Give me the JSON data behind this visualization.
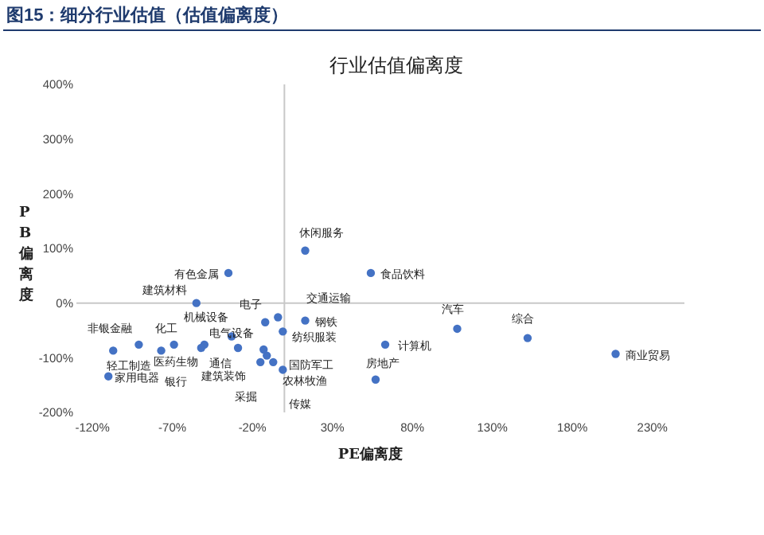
{
  "chart_data": {
    "type": "scatter",
    "title": "图15：细分行业估值（估值偏离度）",
    "subtitle": "行业估值偏离度",
    "xlabel": "PE偏离度",
    "ylabel": "PB偏离度",
    "xlim": [
      -130,
      250
    ],
    "ylim": [
      -200,
      400
    ],
    "xticks": [
      {
        "value": -120,
        "label": "-120%"
      },
      {
        "value": -70,
        "label": "-70%"
      },
      {
        "value": -20,
        "label": "-20%"
      },
      {
        "value": 30,
        "label": "30%"
      },
      {
        "value": 80,
        "label": "80%"
      },
      {
        "value": 130,
        "label": "130%"
      },
      {
        "value": 180,
        "label": "180%"
      },
      {
        "value": 230,
        "label": "230%"
      }
    ],
    "yticks": [
      {
        "value": -200,
        "label": "-200%"
      },
      {
        "value": -100,
        "label": "-100%"
      },
      {
        "value": 0,
        "label": "0%"
      },
      {
        "value": 100,
        "label": "100%"
      },
      {
        "value": 200,
        "label": "200%"
      },
      {
        "value": 300,
        "label": "300%"
      },
      {
        "value": 400,
        "label": "400%"
      }
    ],
    "marker": "circle",
    "series": [
      {
        "color": "#4472c4",
        "x": [
          13,
          54,
          -35,
          -55,
          -12,
          -4,
          13,
          -1,
          -29,
          -11,
          -15,
          -7,
          -1,
          -33,
          -50,
          -52,
          -69,
          -91,
          -77,
          -107,
          -110,
          63,
          57,
          108,
          152,
          207,
          -13
        ],
        "values": [
          96,
          55,
          55,
          0,
          -35,
          -26,
          -32,
          -52,
          -82,
          -96,
          -108,
          -108,
          -122,
          -61,
          -76,
          -82,
          -76,
          -76,
          -87,
          -87,
          -134,
          -76,
          -140,
          -47,
          -64,
          -93,
          -85
        ]
      }
    ],
    "annotations": [
      {
        "text": "休闲服务",
        "x": 13,
        "y": 96
      },
      {
        "text": "食品饮料",
        "x": 54,
        "y": 55
      },
      {
        "text": "有色金属",
        "x": -35,
        "y": 55
      },
      {
        "text": "建筑材料",
        "x": -55,
        "y": 0
      },
      {
        "text": "电子",
        "x": -12,
        "y": -35
      },
      {
        "text": "交通运输",
        "x": -4,
        "y": -26
      },
      {
        "text": "钢铁",
        "x": 13,
        "y": -32
      },
      {
        "text": "纺织服装",
        "x": -1,
        "y": -52
      },
      {
        "text": "通信",
        "x": -29,
        "y": -82
      },
      {
        "text": "国防军工",
        "x": -11,
        "y": -96
      },
      {
        "text": "采掘",
        "x": -15,
        "y": -108
      },
      {
        "text": "农林牧渔",
        "x": -7,
        "y": -108
      },
      {
        "text": "传媒",
        "x": -1,
        "y": -122
      },
      {
        "text": "机械设备",
        "x": -33,
        "y": -61
      },
      {
        "text": "医药生物",
        "x": -50,
        "y": -76
      },
      {
        "text": "建筑装饰",
        "x": -52,
        "y": -82
      },
      {
        "text": "化工",
        "x": -69,
        "y": -76
      },
      {
        "text": "非银金融",
        "x": -91,
        "y": -76
      },
      {
        "text": "银行",
        "x": -77,
        "y": -87
      },
      {
        "text": "轻工制造",
        "x": -107,
        "y": -87
      },
      {
        "text": "家用电器",
        "x": -110,
        "y": -134
      },
      {
        "text": "计算机",
        "x": 63,
        "y": -76
      },
      {
        "text": "房地产",
        "x": 57,
        "y": -140
      },
      {
        "text": "汽车",
        "x": 108,
        "y": -47
      },
      {
        "text": "综合",
        "x": 152,
        "y": -64
      },
      {
        "text": "商业贸易",
        "x": 207,
        "y": -93
      },
      {
        "text": "电气设备",
        "x": -13,
        "y": -85
      }
    ]
  }
}
